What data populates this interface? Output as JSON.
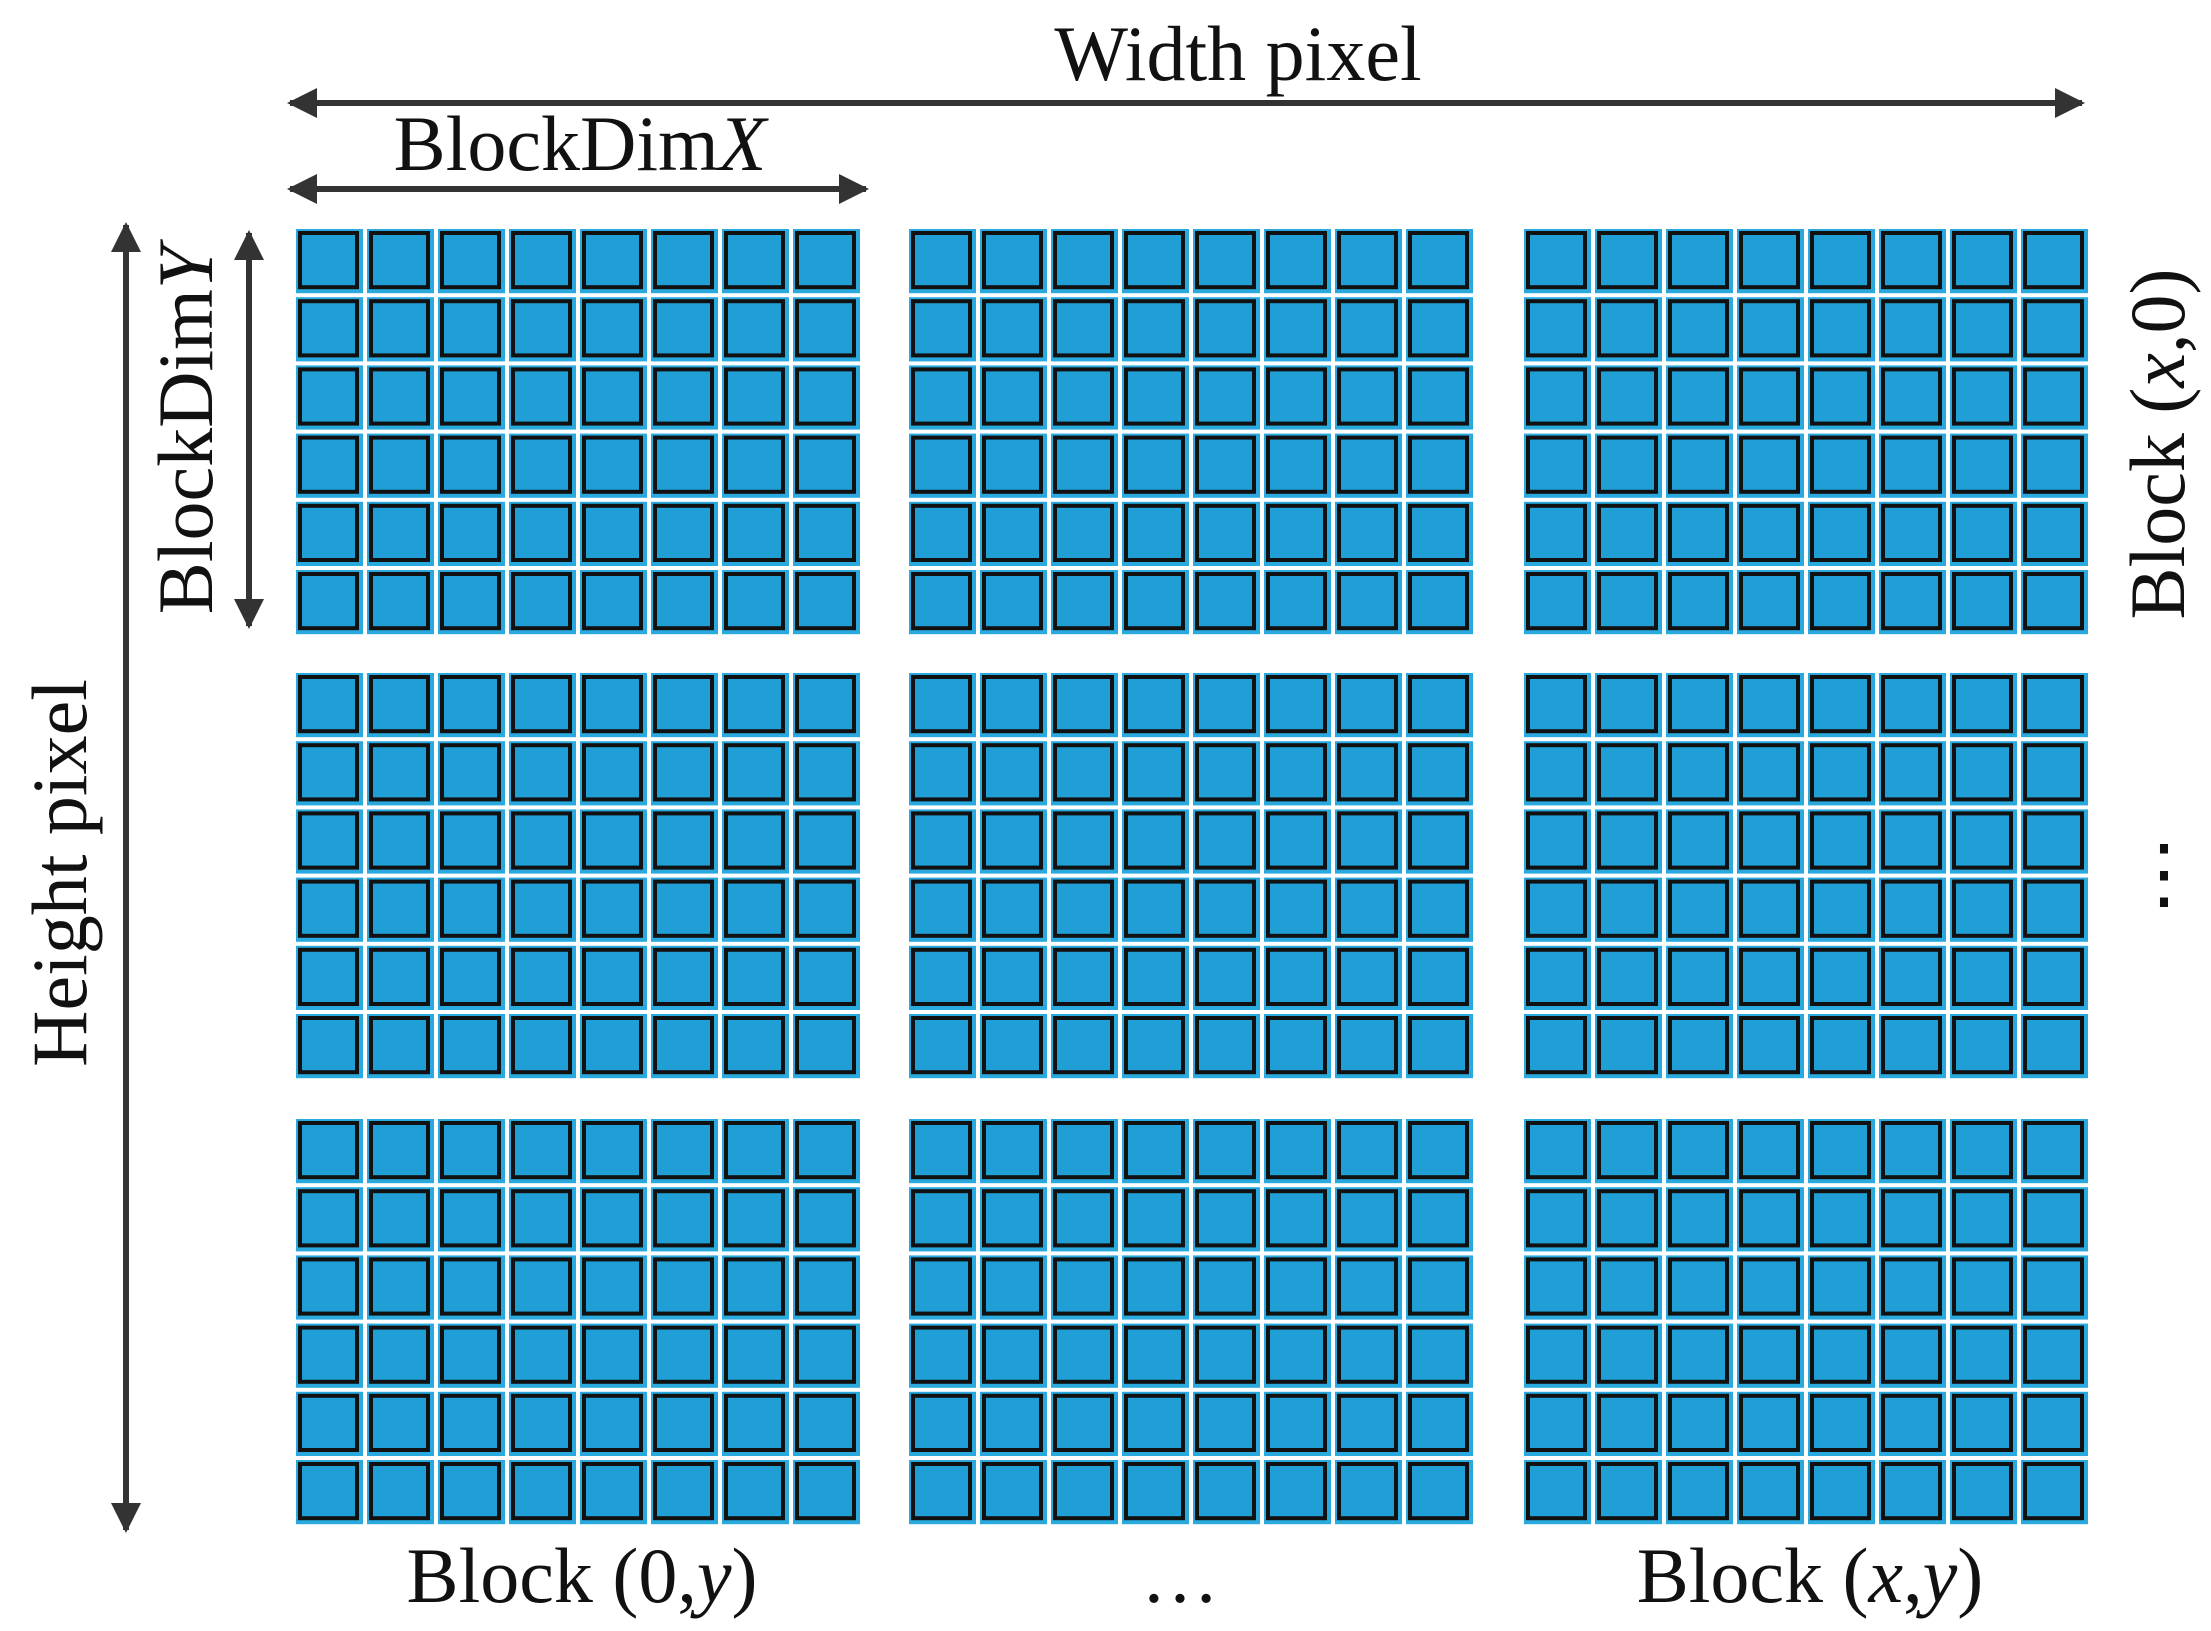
{
  "width_label": "Width pixel",
  "block_dim_x": [
    "BlockDim",
    "X"
  ],
  "block_dim_y": [
    "BlockDim",
    "Y"
  ],
  "height_label": "Height pixel",
  "block_x0": [
    "Block (",
    "x",
    ",0)"
  ],
  "vertical_ellipsis": "⋮",
  "block_0y": [
    "Block (0,",
    "y",
    ")"
  ],
  "horizontal_ellipsis": "…",
  "block_xy": [
    "Block (",
    "x",
    ",",
    "y",
    ")"
  ]
}
